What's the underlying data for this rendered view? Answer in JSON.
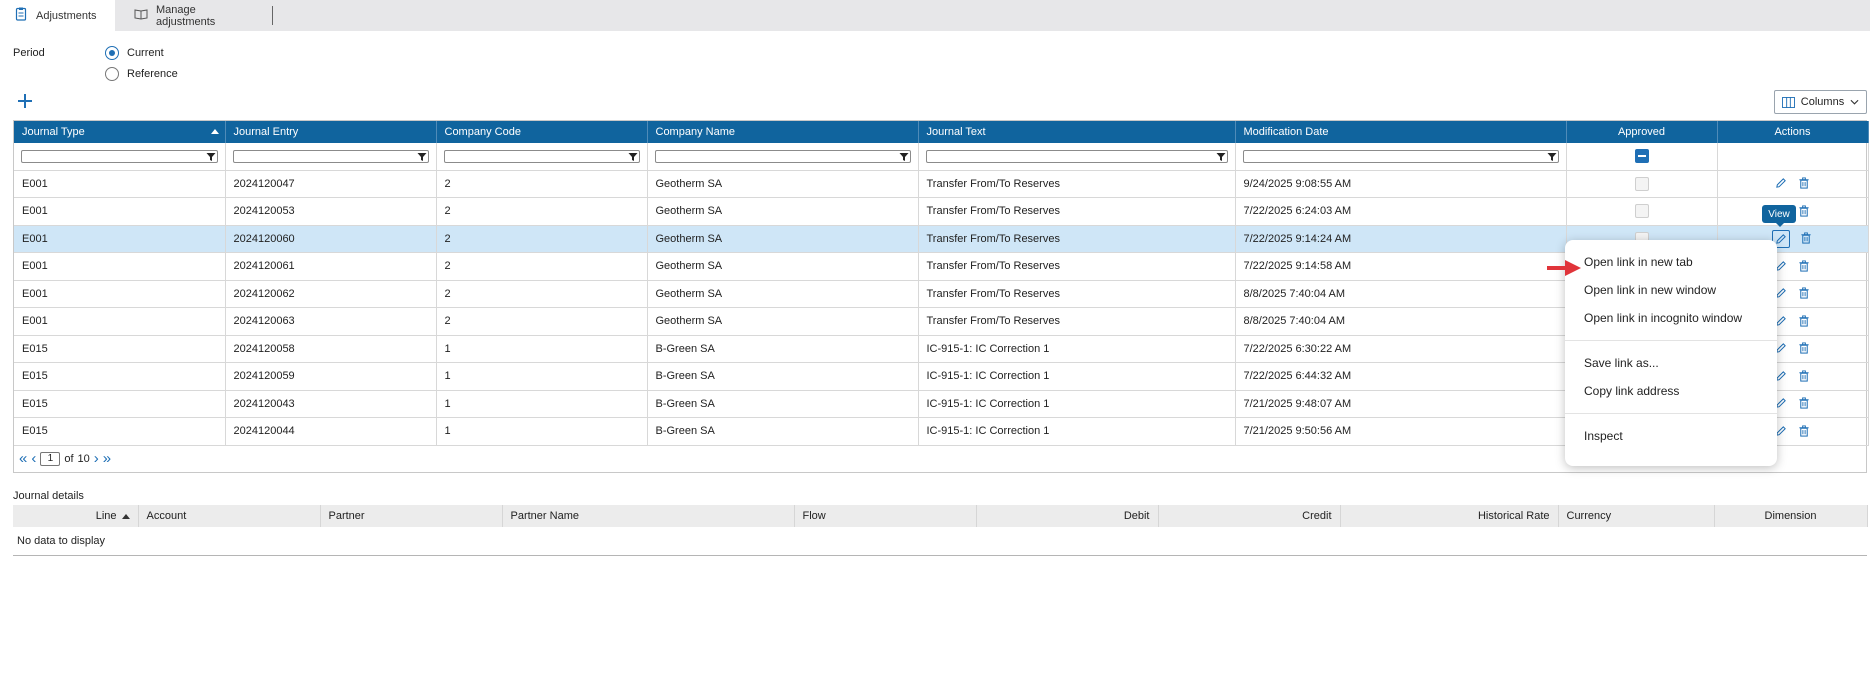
{
  "tabs": [
    {
      "label": "Adjustments",
      "icon": "clipboard-icon",
      "active": true
    },
    {
      "label": "Manage adjustments",
      "icon": "book-icon",
      "active": false
    }
  ],
  "period": {
    "label": "Period",
    "options": [
      {
        "label": "Current",
        "checked": true
      },
      {
        "label": "Reference",
        "checked": false
      }
    ]
  },
  "toolbar": {
    "add_icon": "plus-icon",
    "columns_label": "Columns"
  },
  "grid": {
    "columns": [
      "Journal Type",
      "Journal Entry",
      "Company Code",
      "Company Name",
      "Journal Text",
      "Modification Date",
      "Approved",
      "Actions"
    ],
    "rows": [
      {
        "type": "E001",
        "entry": "2024120047",
        "code": "2",
        "name": "Geotherm SA",
        "text": "Transfer From/To Reserves",
        "date": "9/24/2025 9:08:55 AM"
      },
      {
        "type": "E001",
        "entry": "2024120053",
        "code": "2",
        "name": "Geotherm SA",
        "text": "Transfer From/To Reserves",
        "date": "7/22/2025 6:24:03 AM"
      },
      {
        "type": "E001",
        "entry": "2024120060",
        "code": "2",
        "name": "Geotherm SA",
        "text": "Transfer From/To Reserves",
        "date": "7/22/2025 9:14:24 AM"
      },
      {
        "type": "E001",
        "entry": "2024120061",
        "code": "2",
        "name": "Geotherm SA",
        "text": "Transfer From/To Reserves",
        "date": "7/22/2025 9:14:58 AM"
      },
      {
        "type": "E001",
        "entry": "2024120062",
        "code": "2",
        "name": "Geotherm SA",
        "text": "Transfer From/To Reserves",
        "date": "8/8/2025 7:40:04 AM"
      },
      {
        "type": "E001",
        "entry": "2024120063",
        "code": "2",
        "name": "Geotherm SA",
        "text": "Transfer From/To Reserves",
        "date": "8/8/2025 7:40:04 AM"
      },
      {
        "type": "E015",
        "entry": "2024120058",
        "code": "1",
        "name": "B-Green SA",
        "text": "IC-915-1: IC Correction 1",
        "date": "7/22/2025 6:30:22 AM"
      },
      {
        "type": "E015",
        "entry": "2024120059",
        "code": "1",
        "name": "B-Green SA",
        "text": "IC-915-1: IC Correction 1",
        "date": "7/22/2025 6:44:32 AM"
      },
      {
        "type": "E015",
        "entry": "2024120043",
        "code": "1",
        "name": "B-Green SA",
        "text": "IC-915-1: IC Correction 1",
        "date": "7/21/2025 9:48:07 AM"
      },
      {
        "type": "E015",
        "entry": "2024120044",
        "code": "1",
        "name": "B-Green SA",
        "text": "IC-915-1: IC Correction 1",
        "date": "7/21/2025 9:50:56 AM"
      }
    ],
    "selected_row": 2,
    "pager": {
      "page": "1",
      "of_label": "of",
      "total": "10"
    }
  },
  "tooltip": "View",
  "context_menu": {
    "items": [
      "Open link in new tab",
      "Open link in new window",
      "Open link in incognito window",
      "Save link as...",
      "Copy link address",
      "Inspect"
    ]
  },
  "journal_details": {
    "title": "Journal details",
    "columns": [
      "Line",
      "Account",
      "Partner",
      "Partner Name",
      "Flow",
      "Debit",
      "Credit",
      "Historical Rate",
      "Currency",
      "Dimension"
    ],
    "empty_text": "No data to display"
  },
  "colors": {
    "header_blue": "#10649e",
    "accent": "#1f6fb5",
    "selected_row": "#cfe6f7",
    "arrow_red": "#e0343a"
  }
}
